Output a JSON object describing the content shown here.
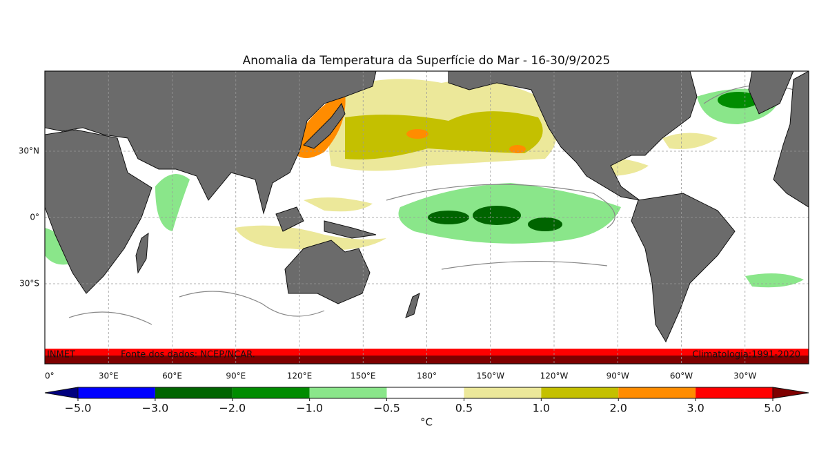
{
  "title": "Anomalia da Temperatura da Superfície do Mar - 16-30/9/2025",
  "map": {
    "lat_ticks": [
      {
        "value": 30,
        "label": "30°N"
      },
      {
        "value": 0,
        "label": "0°"
      },
      {
        "value": -30,
        "label": "30°S"
      }
    ],
    "lon_ticks": [
      {
        "value": 0,
        "label": "0°"
      },
      {
        "value": 30,
        "label": "30°E"
      },
      {
        "value": 60,
        "label": "60°E"
      },
      {
        "value": 90,
        "label": "90°E"
      },
      {
        "value": 120,
        "label": "120°E"
      },
      {
        "value": 150,
        "label": "150°E"
      },
      {
        "value": 180,
        "label": "180°"
      },
      {
        "value": 210,
        "label": "150°W"
      },
      {
        "value": 240,
        "label": "120°W"
      },
      {
        "value": 270,
        "label": "90°W"
      },
      {
        "value": 300,
        "label": "60°W"
      },
      {
        "value": 330,
        "label": "30°W"
      }
    ],
    "annotations": {
      "institute": "INMET",
      "source": "Fonte dos dados: NCEP/NCAR.",
      "climatology": "Climatologia:1991-2020"
    }
  },
  "colorbar": {
    "ticks": [
      {
        "value": -5,
        "label": "−5.0"
      },
      {
        "value": -3,
        "label": "−3.0"
      },
      {
        "value": -2,
        "label": "−2.0"
      },
      {
        "value": -1,
        "label": "−1.0"
      },
      {
        "value": -0.5,
        "label": "−0.5"
      },
      {
        "value": 0.5,
        "label": "0.5"
      },
      {
        "value": 1,
        "label": "1.0"
      },
      {
        "value": 2,
        "label": "2.0"
      },
      {
        "value": 3,
        "label": "3.0"
      },
      {
        "value": 5,
        "label": "5.0"
      }
    ],
    "colors": [
      "#0000ff",
      "#006400",
      "#008c00",
      "#8ae68a",
      "#ffffff",
      "#ece89a",
      "#c4c000",
      "#ff8c00",
      "#ff0000"
    ],
    "under_color": "#00007f",
    "over_color": "#7f0000",
    "unit": "°C"
  }
}
